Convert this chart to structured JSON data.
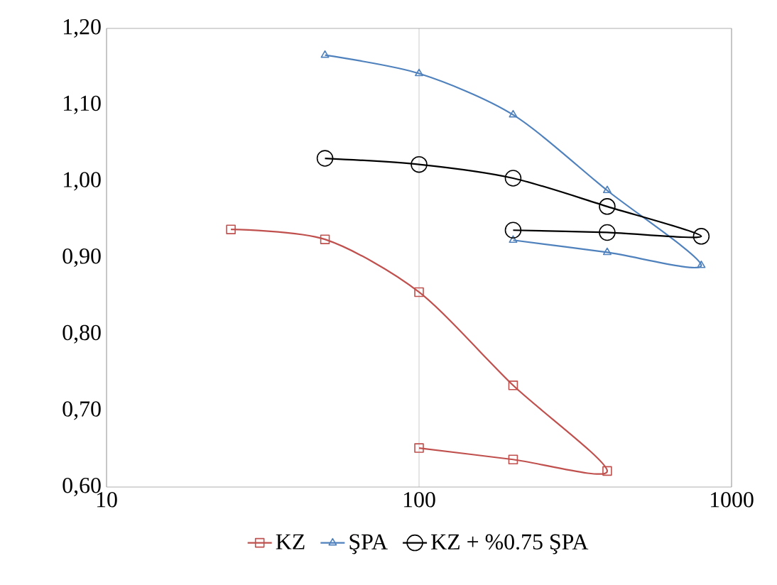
{
  "chart_data": {
    "type": "line",
    "log": "x",
    "grid": "x",
    "legend": "bottom",
    "line_style": "solid",
    "xlim": [
      10,
      1000
    ],
    "xticks": [
      10,
      100,
      1000
    ],
    "ylim": [
      0.6,
      1.2
    ],
    "yticks": [
      {
        "value": 0.6,
        "label": "0,60"
      },
      {
        "value": 0.7,
        "label": "0,70"
      },
      {
        "value": 0.8,
        "label": "0,80"
      },
      {
        "value": 0.9,
        "label": "0,90"
      },
      {
        "value": 1.0,
        "label": "1,00"
      },
      {
        "value": 1.1,
        "label": "1,10"
      },
      {
        "value": 1.2,
        "label": "1,20"
      }
    ],
    "series": [
      {
        "name": "KZ",
        "color": "#c0504d",
        "marker": "square",
        "x": [
          25,
          50,
          100,
          200,
          400,
          200,
          100
        ],
        "values": [
          0.937,
          0.924,
          0.855,
          0.733,
          0.621,
          0.636,
          0.651
        ]
      },
      {
        "name": "ŞPA",
        "color": "#4f81bd",
        "marker": "triangle",
        "x": [
          50,
          100,
          200,
          400,
          800,
          400,
          200
        ],
        "values": [
          1.165,
          1.141,
          1.087,
          0.988,
          0.89,
          0.907,
          0.923
        ]
      },
      {
        "name": "KZ + %0.75 ŞPA",
        "color": "#000000",
        "marker": "circle",
        "x": [
          50,
          100,
          200,
          400,
          800,
          400,
          200
        ],
        "values": [
          1.03,
          1.022,
          1.004,
          0.967,
          0.928,
          0.933,
          0.936
        ]
      }
    ]
  }
}
